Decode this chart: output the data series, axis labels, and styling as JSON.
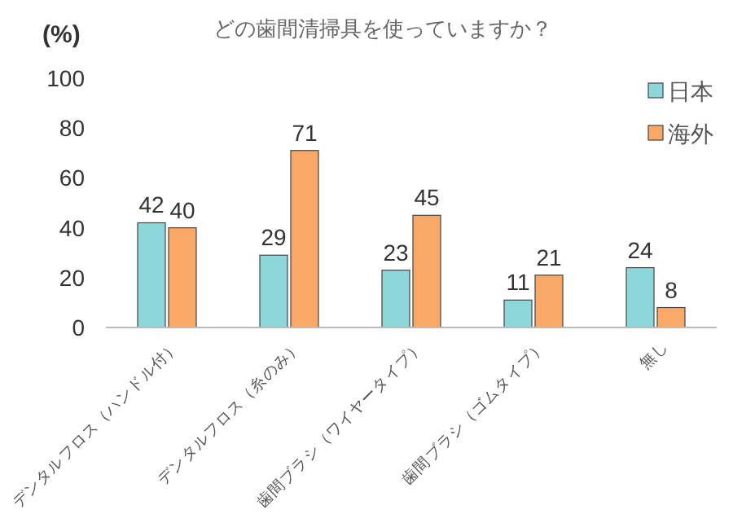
{
  "chart_data": {
    "type": "bar",
    "title": "どの歯間清掃具を使っていますか？",
    "ylabel": "(%)",
    "categories": [
      "デンタルフロス（ハンドル付）",
      "デンタルフロス（糸のみ）",
      "歯間ブラシ（ワイヤータイプ）",
      "歯間ブラシ（ゴムタイプ）",
      "無し"
    ],
    "series": [
      {
        "name": "日本",
        "color": "#8dd6d9",
        "values": [
          42,
          29,
          23,
          11,
          24
        ]
      },
      {
        "name": "海外",
        "color": "#f9a868",
        "values": [
          40,
          71,
          45,
          21,
          8
        ]
      }
    ],
    "ylim": [
      0,
      100
    ],
    "yticks": [
      0,
      20,
      40,
      60,
      80,
      100
    ],
    "grid": false,
    "legend": "top right",
    "data_labels": true
  }
}
